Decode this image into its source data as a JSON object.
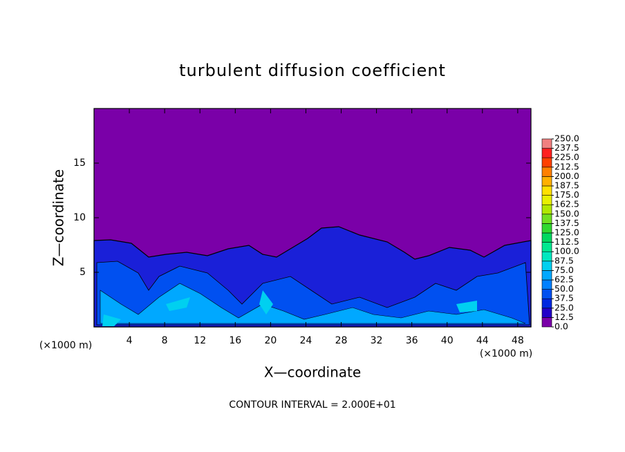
{
  "chart_data": {
    "type": "contour",
    "title": "turbulent diffusion coefficient",
    "xlabel": "X—coordinate",
    "ylabel": "Z—coordinate",
    "x_unit": "(×1000 m)",
    "y_unit": "(×1000 m)",
    "annotation": "CONTOUR INTERVAL = 2.000E+01",
    "xlim": [
      0,
      49.5
    ],
    "ylim": [
      0,
      20
    ],
    "xticks": [
      4,
      8,
      12,
      16,
      20,
      24,
      28,
      32,
      36,
      40,
      44,
      48
    ],
    "yticks": [
      5,
      10,
      15
    ],
    "colorbar": {
      "levels": [
        {
          "value": 0,
          "label": "0.0"
        },
        {
          "value": 12.5,
          "label": "12.5"
        },
        {
          "value": 25,
          "label": "25.0"
        },
        {
          "value": 37.5,
          "label": "37.5"
        },
        {
          "value": 50,
          "label": "50.0"
        },
        {
          "value": 62.5,
          "label": "62.5"
        },
        {
          "value": 75,
          "label": "75.0"
        },
        {
          "value": 87.5,
          "label": "87.5"
        },
        {
          "value": 100,
          "label": "100.0"
        },
        {
          "value": 112.5,
          "label": "112.5"
        },
        {
          "value": 125,
          "label": "125.0"
        },
        {
          "value": 137.5,
          "label": "137.5"
        },
        {
          "value": 150,
          "label": "150.0"
        },
        {
          "value": 162.5,
          "label": "162.5"
        },
        {
          "value": 175,
          "label": "175.0"
        },
        {
          "value": 187.5,
          "label": "187.5"
        },
        {
          "value": 200,
          "label": "200.0"
        },
        {
          "value": 212.5,
          "label": "212.5"
        },
        {
          "value": 225,
          "label": "225.0"
        },
        {
          "value": 237.5,
          "label": "237.5"
        },
        {
          "value": 250,
          "label": "250.0"
        }
      ],
      "colors": [
        "#7a00a8",
        "#2200c8",
        "#0028e0",
        "#0050f0",
        "#0080ff",
        "#00a8ff",
        "#00d0f0",
        "#00e8c0",
        "#00e890",
        "#00d860",
        "#30d830",
        "#70e020",
        "#b0e800",
        "#e8f000",
        "#ffe000",
        "#ffb000",
        "#ff8000",
        "#ff4000",
        "#ff2020",
        "#f08080"
      ]
    }
  }
}
